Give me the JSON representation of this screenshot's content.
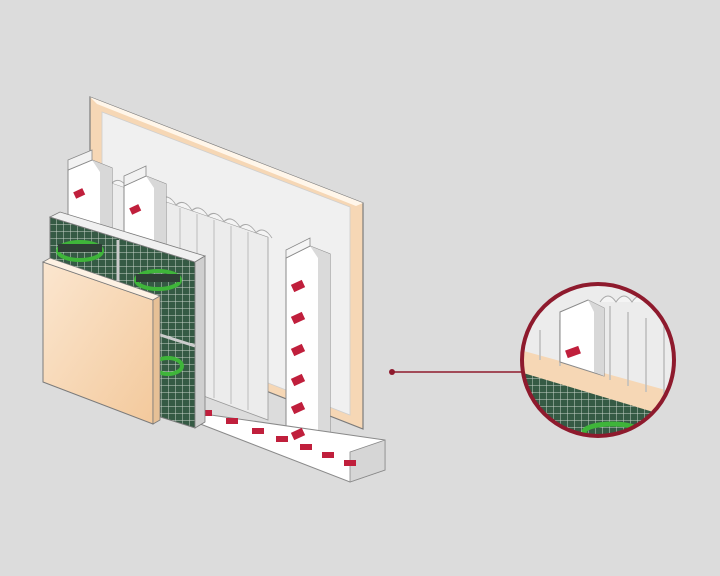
{
  "diagram": {
    "colors": {
      "background": "#dcdcdc",
      "board_face": "#f7d8b4",
      "board_face_light": "#fbe8d2",
      "board_edge": "#e7c39c",
      "outline": "#7b7b7b",
      "mesh_bg": "#355a44",
      "mesh_line": "#c7d3c9",
      "brand_green": "#3fb53a",
      "stud_white": "#ffffff",
      "stud_shadow": "#d7d7d7",
      "insulation": "#ececec",
      "mark_red": "#c01f3c",
      "callout": "#8e1a2d"
    },
    "brand_marks": [
      "brand-logo-a",
      "brand-logo-b",
      "brand-logo-c"
    ],
    "callout_icon": "magnifier-circle"
  }
}
